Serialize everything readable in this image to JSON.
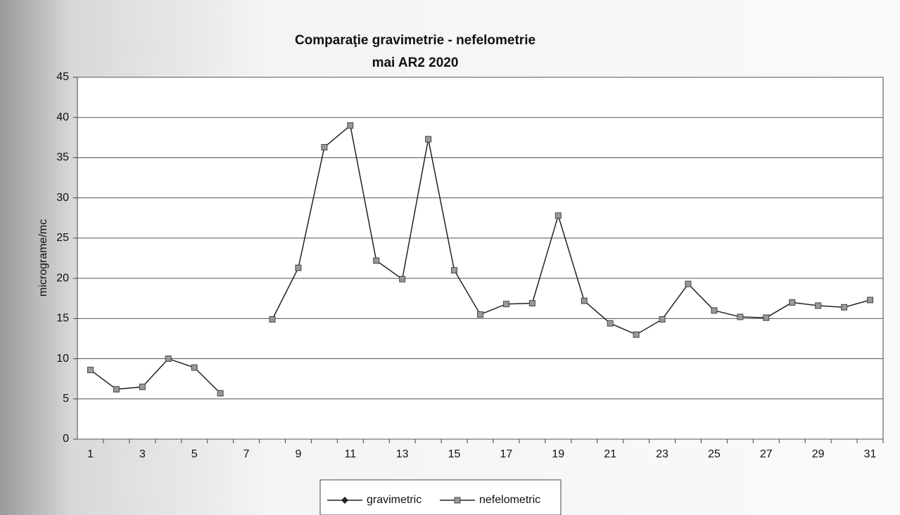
{
  "chart_data": {
    "type": "line",
    "title": "Comparaţie gravimetrie - nefelometrie",
    "subtitle": "mai AR2 2020",
    "y_label": "micrograme/mc",
    "categories": [
      1,
      null,
      3,
      null,
      5,
      null,
      7,
      null,
      9,
      null,
      11,
      null,
      13,
      null,
      15,
      null,
      17,
      null,
      19,
      null,
      21,
      null,
      23,
      null,
      25,
      null,
      27,
      null,
      29,
      null,
      31
    ],
    "series": [
      {
        "name": "gravimetric",
        "color": "#222222",
        "marker": "diamond",
        "values": [
          null,
          null,
          null,
          null,
          null,
          null,
          null,
          null,
          null,
          null,
          null,
          null,
          null,
          null,
          null,
          null,
          null,
          null,
          null,
          null,
          null,
          null,
          null,
          null,
          null,
          null,
          null,
          null,
          null,
          null,
          null
        ]
      },
      {
        "name": "nefelometric",
        "color": "#222222",
        "marker": "square",
        "values": [
          8.6,
          6.2,
          6.5,
          10.0,
          8.9,
          5.7,
          null,
          14.9,
          21.3,
          36.3,
          39.0,
          22.2,
          19.9,
          37.3,
          21.0,
          15.5,
          16.8,
          16.9,
          27.8,
          17.2,
          14.4,
          13.0,
          14.9,
          19.3,
          16.0,
          15.2,
          15.1,
          17.0,
          16.6,
          16.4,
          17.3
        ]
      }
    ],
    "ylim": [
      0,
      45
    ],
    "yticks": [
      0,
      5,
      10,
      15,
      20,
      25,
      30,
      35,
      40,
      45
    ],
    "grid": true,
    "legend": "bottom"
  }
}
